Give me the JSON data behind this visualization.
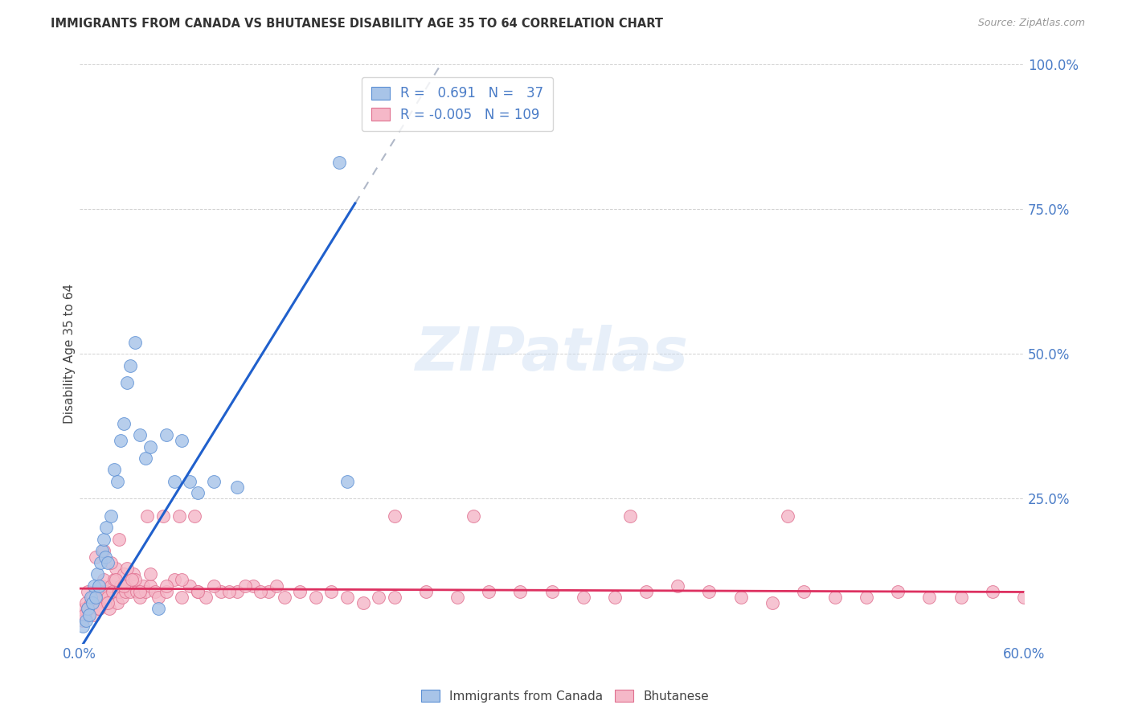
{
  "title": "IMMIGRANTS FROM CANADA VS BHUTANESE DISABILITY AGE 35 TO 64 CORRELATION CHART",
  "source": "Source: ZipAtlas.com",
  "ylabel": "Disability Age 35 to 64",
  "xlim": [
    0.0,
    60.0
  ],
  "ylim": [
    0.0,
    100.0
  ],
  "yticks": [
    0.0,
    25.0,
    50.0,
    75.0,
    100.0
  ],
  "xticks": [
    0.0,
    10.0,
    20.0,
    30.0,
    40.0,
    50.0,
    60.0
  ],
  "r_canada": 0.691,
  "n_canada": 37,
  "r_bhutanese": -0.005,
  "n_bhutanese": 109,
  "canada_color": "#a8c4e8",
  "canada_edge": "#5b8fd4",
  "bhutanese_color": "#f5b8c8",
  "bhutanese_edge": "#e07090",
  "trend_canada_color": "#2060cc",
  "trend_bhutanese_color": "#dd3060",
  "dashed_color": "#b0b8c8",
  "watermark": "ZIPatlas",
  "background_color": "#ffffff",
  "legend_canada": "Immigrants from Canada",
  "legend_bhutanese": "Bhutanese",
  "canada_x": [
    0.2,
    0.4,
    0.5,
    0.6,
    0.7,
    0.8,
    0.9,
    1.0,
    1.1,
    1.2,
    1.3,
    1.4,
    1.5,
    1.6,
    1.7,
    1.8,
    2.0,
    2.2,
    2.4,
    2.6,
    2.8,
    3.0,
    3.2,
    3.5,
    3.8,
    4.2,
    4.5,
    5.0,
    5.5,
    6.0,
    6.5,
    7.0,
    8.5,
    10.0,
    16.5,
    17.0,
    7.5
  ],
  "canada_y": [
    3.0,
    4.0,
    6.0,
    5.0,
    8.0,
    7.0,
    10.0,
    8.0,
    12.0,
    10.0,
    14.0,
    16.0,
    18.0,
    15.0,
    20.0,
    14.0,
    22.0,
    30.0,
    28.0,
    35.0,
    38.0,
    45.0,
    48.0,
    52.0,
    36.0,
    32.0,
    34.0,
    6.0,
    36.0,
    28.0,
    35.0,
    28.0,
    28.0,
    27.0,
    83.0,
    28.0,
    26.0
  ],
  "bhutanese_x": [
    0.1,
    0.2,
    0.3,
    0.4,
    0.5,
    0.6,
    0.7,
    0.8,
    0.9,
    1.0,
    1.1,
    1.2,
    1.3,
    1.4,
    1.5,
    1.6,
    1.7,
    1.8,
    1.9,
    2.0,
    2.1,
    2.2,
    2.3,
    2.4,
    2.5,
    2.6,
    2.7,
    2.8,
    2.9,
    3.0,
    3.2,
    3.4,
    3.6,
    3.8,
    4.0,
    4.2,
    4.5,
    4.8,
    5.0,
    5.5,
    6.0,
    6.5,
    7.0,
    7.5,
    8.0,
    9.0,
    10.0,
    11.0,
    12.0,
    13.0,
    14.0,
    15.0,
    16.0,
    17.0,
    18.0,
    19.0,
    20.0,
    22.0,
    24.0,
    26.0,
    28.0,
    30.0,
    32.0,
    34.0,
    36.0,
    38.0,
    40.0,
    42.0,
    44.0,
    46.0,
    48.0,
    50.0,
    52.0,
    54.0,
    56.0,
    58.0,
    60.0,
    3.5,
    4.5,
    5.5,
    6.5,
    7.5,
    8.5,
    9.5,
    10.5,
    11.5,
    12.5,
    1.0,
    1.5,
    2.0,
    2.5,
    3.0,
    0.3,
    0.5,
    0.8,
    1.2,
    1.8,
    2.3,
    2.8,
    3.3,
    3.8,
    4.3,
    5.3,
    6.3,
    7.3,
    20.0,
    25.0,
    35.0,
    45.0
  ],
  "bhutanese_y": [
    5.0,
    4.0,
    6.0,
    7.0,
    9.0,
    6.0,
    7.0,
    8.0,
    5.0,
    9.0,
    7.0,
    6.0,
    8.0,
    10.0,
    11.0,
    9.0,
    7.0,
    8.0,
    6.0,
    10.0,
    9.0,
    11.0,
    13.0,
    7.0,
    9.0,
    10.0,
    8.0,
    12.0,
    9.0,
    10.0,
    9.0,
    12.0,
    9.0,
    8.0,
    10.0,
    9.0,
    10.0,
    9.0,
    8.0,
    9.0,
    11.0,
    8.0,
    10.0,
    9.0,
    8.0,
    9.0,
    9.0,
    10.0,
    9.0,
    8.0,
    9.0,
    8.0,
    9.0,
    8.0,
    7.0,
    8.0,
    8.0,
    9.0,
    8.0,
    9.0,
    9.0,
    9.0,
    8.0,
    8.0,
    9.0,
    10.0,
    9.0,
    8.0,
    7.0,
    9.0,
    8.0,
    8.0,
    9.0,
    8.0,
    8.0,
    9.0,
    8.0,
    11.0,
    12.0,
    10.0,
    11.0,
    9.0,
    10.0,
    9.0,
    10.0,
    9.0,
    10.0,
    15.0,
    16.0,
    14.0,
    18.0,
    13.0,
    5.0,
    6.0,
    7.0,
    6.0,
    7.0,
    11.0,
    10.0,
    11.0,
    9.0,
    22.0,
    22.0,
    22.0,
    22.0,
    22.0,
    22.0,
    22.0,
    22.0
  ],
  "trend_canada_slope": 4.4,
  "trend_canada_intercept": -1.0,
  "trend_bhutanese_slope": -0.01,
  "trend_bhutanese_intercept": 9.5,
  "solid_line_end_x": 17.5,
  "dashed_line_start_x": 17.5,
  "dashed_line_end_x": 60.0
}
